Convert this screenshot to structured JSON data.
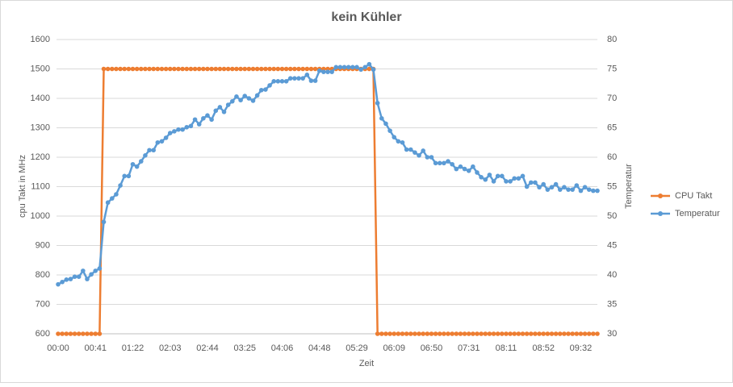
{
  "chart_data": {
    "type": "line",
    "title": "kein Kühler",
    "xlabel": "Zeit",
    "ylabel": "cpu Takt in MHz",
    "y2label": "Temperatur",
    "categories": [
      "00:00",
      null,
      null,
      null,
      null,
      null,
      null,
      null,
      null,
      "00:41",
      null,
      null,
      null,
      null,
      null,
      null,
      null,
      null,
      "01:22",
      null,
      null,
      null,
      null,
      null,
      null,
      null,
      null,
      "02:03",
      null,
      null,
      null,
      null,
      null,
      null,
      null,
      null,
      "02:44",
      null,
      null,
      null,
      null,
      null,
      null,
      null,
      null,
      "03:25",
      null,
      null,
      null,
      null,
      null,
      null,
      null,
      null,
      "04:06",
      null,
      null,
      null,
      null,
      null,
      null,
      null,
      null,
      "04:48",
      null,
      null,
      null,
      null,
      null,
      null,
      null,
      null,
      "05:29",
      null,
      null,
      null,
      null,
      null,
      null,
      null,
      null,
      "06:09",
      null,
      null,
      null,
      null,
      null,
      null,
      null,
      null,
      "06:50",
      null,
      null,
      null,
      null,
      null,
      null,
      null,
      null,
      "07:31",
      null,
      null,
      null,
      null,
      null,
      null,
      null,
      null,
      "08:11",
      null,
      null,
      null,
      null,
      null,
      null,
      null,
      null,
      "08:52",
      null,
      null,
      null,
      null,
      null,
      null,
      null,
      null,
      "09:32",
      null,
      null,
      null,
      null
    ],
    "series": [
      {
        "name": "CPU Takt",
        "color": "#ed7d31",
        "values": [
          600,
          600,
          600,
          600,
          600,
          600,
          600,
          600,
          600,
          600,
          600,
          1500,
          1500,
          1500,
          1500,
          1500,
          1500,
          1500,
          1500,
          1500,
          1500,
          1500,
          1500,
          1500,
          1500,
          1500,
          1500,
          1500,
          1500,
          1500,
          1500,
          1500,
          1500,
          1500,
          1500,
          1500,
          1500,
          1500,
          1500,
          1500,
          1500,
          1500,
          1500,
          1500,
          1500,
          1500,
          1500,
          1500,
          1500,
          1500,
          1500,
          1500,
          1500,
          1500,
          1500,
          1500,
          1500,
          1500,
          1500,
          1500,
          1500,
          1500,
          1500,
          1500,
          1500,
          1500,
          1500,
          1500,
          1500,
          1500,
          1500,
          1500,
          1500,
          1500,
          1500,
          1500,
          1500,
          600,
          600,
          600,
          600,
          600,
          600,
          600,
          600,
          600,
          600,
          600,
          600,
          600,
          600,
          600,
          600,
          600,
          600,
          600,
          600,
          600,
          600,
          600,
          600,
          600,
          600,
          600,
          600,
          600,
          600,
          600,
          600,
          600,
          600,
          600,
          600,
          600,
          600,
          600,
          600,
          600,
          600,
          600,
          600,
          600,
          600,
          600,
          600,
          600,
          600,
          600,
          600,
          600,
          600
        ]
      },
      {
        "name": "Temperatur",
        "color": "#5b9bd5",
        "axis": "y2",
        "values": [
          38.4,
          38.8,
          39.2,
          39.3,
          39.7,
          39.7,
          40.7,
          39.3,
          40.1,
          40.7,
          41.1,
          49.0,
          52.3,
          53.0,
          53.7,
          55.2,
          56.8,
          56.8,
          58.8,
          58.4,
          59.3,
          60.3,
          61.2,
          61.2,
          62.5,
          62.7,
          63.3,
          64.1,
          64.4,
          64.7,
          64.7,
          65.1,
          65.3,
          66.4,
          65.6,
          66.6,
          67.1,
          66.4,
          67.9,
          68.5,
          67.7,
          68.9,
          69.5,
          70.3,
          69.7,
          70.4,
          70.0,
          69.6,
          70.5,
          71.4,
          71.5,
          72.2,
          72.9,
          72.9,
          72.9,
          72.9,
          73.4,
          73.4,
          73.4,
          73.4,
          74.0,
          73.0,
          73.0,
          74.7,
          74.5,
          74.5,
          74.5,
          75.3,
          75.3,
          75.3,
          75.3,
          75.3,
          75.3,
          74.9,
          75.3,
          75.8,
          74.9,
          69.2,
          66.6,
          65.7,
          64.5,
          63.4,
          62.7,
          62.5,
          61.3,
          61.3,
          60.8,
          60.3,
          61.1,
          60.0,
          60.0,
          59.0,
          59.0,
          59.0,
          59.3,
          58.8,
          58.0,
          58.4,
          58.0,
          57.7,
          58.4,
          57.4,
          56.6,
          56.2,
          57.0,
          55.9,
          56.8,
          56.8,
          55.9,
          55.9,
          56.4,
          56.4,
          56.8,
          55.0,
          55.7,
          55.7,
          54.9,
          55.4,
          54.5,
          54.9,
          55.4,
          54.5,
          54.9,
          54.5,
          54.5,
          55.2,
          54.3,
          54.9,
          54.5,
          54.3,
          54.3
        ]
      }
    ],
    "ylim": [
      600,
      1600
    ],
    "yticks": [
      600,
      700,
      800,
      900,
      1000,
      1100,
      1200,
      1300,
      1400,
      1500,
      1600
    ],
    "y2lim": [
      30,
      80
    ],
    "y2ticks": [
      30,
      35,
      40,
      45,
      50,
      55,
      60,
      65,
      70,
      75,
      80
    ],
    "grid": true,
    "legend": "right"
  }
}
